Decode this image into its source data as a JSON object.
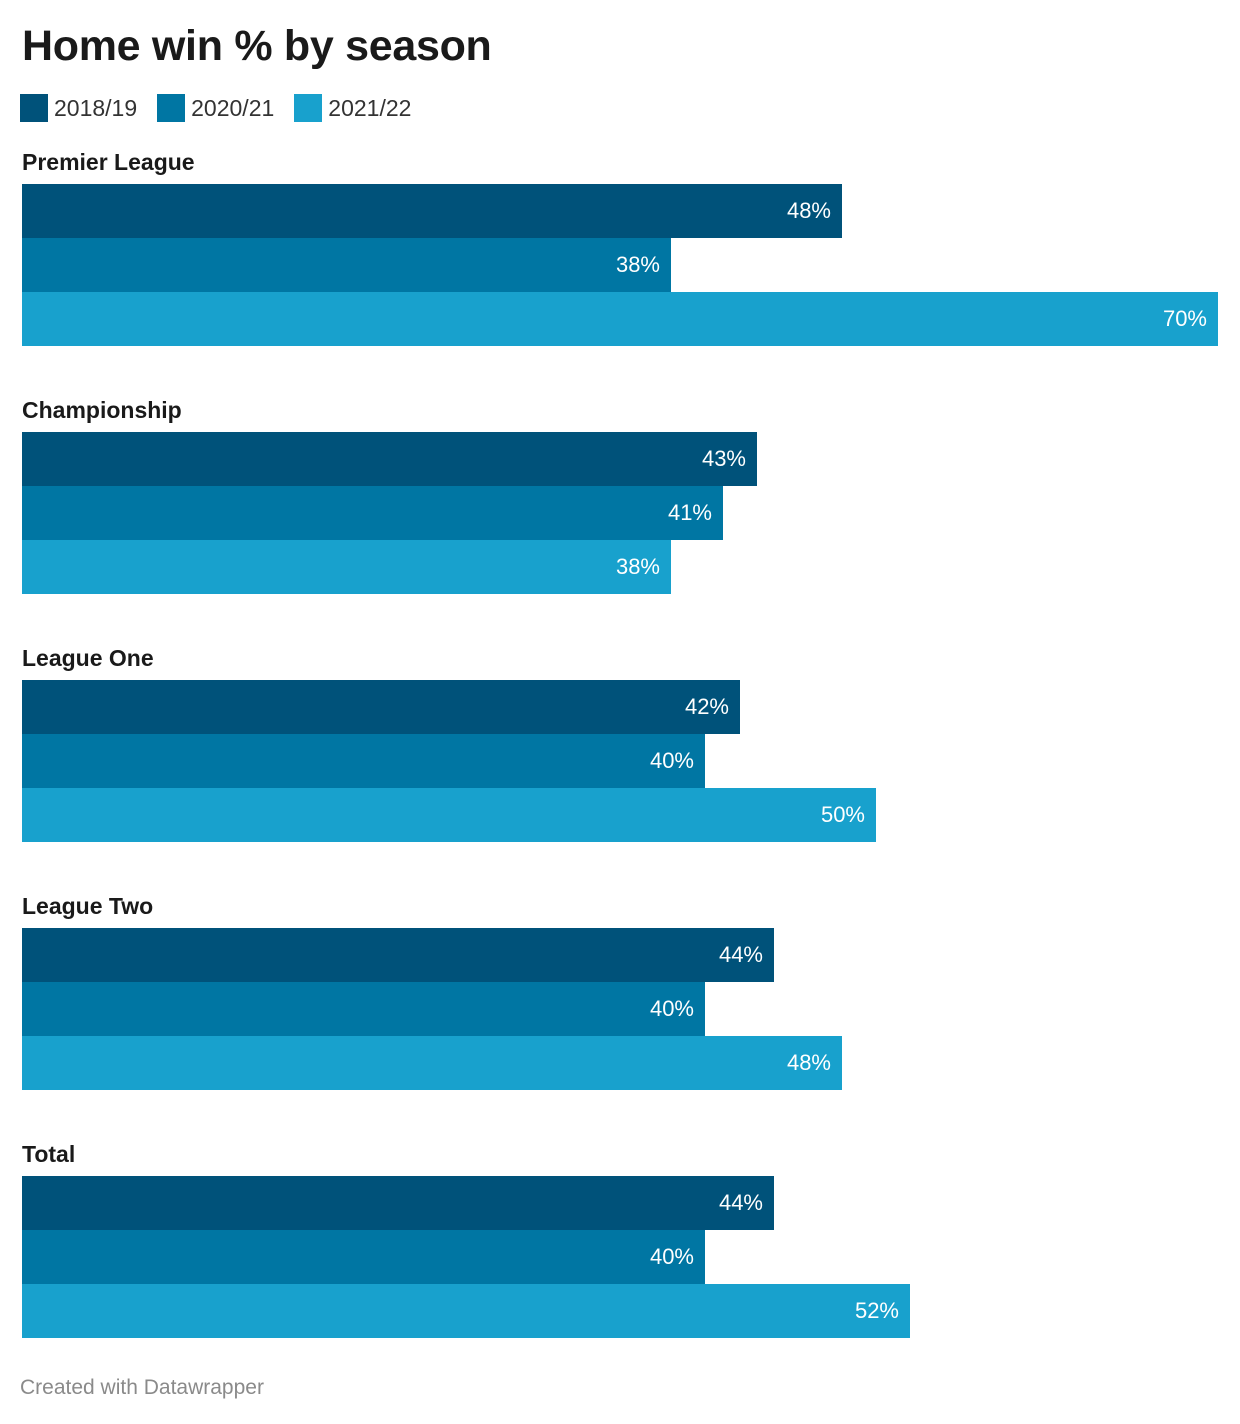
{
  "chart_data": {
    "type": "bar",
    "orientation": "horizontal",
    "title": "Home win % by season",
    "categories": [
      "Premier League",
      "Championship",
      "League One",
      "League Two",
      "Total"
    ],
    "series": [
      {
        "name": "2018/19",
        "color": "#00527a",
        "values": [
          48,
          43,
          42,
          44,
          44
        ],
        "labels": [
          "48%",
          "43%",
          "42%",
          "44%",
          "44%"
        ]
      },
      {
        "name": "2020/21",
        "color": "#0076a3",
        "values": [
          38,
          41,
          40,
          40,
          40
        ],
        "labels": [
          "38%",
          "41%",
          "40%",
          "40%",
          "40%"
        ]
      },
      {
        "name": "2021/22",
        "color": "#18a1cd",
        "values": [
          70,
          38,
          50,
          48,
          52
        ],
        "labels": [
          "70%",
          "38%",
          "50%",
          "48%",
          "52%"
        ]
      }
    ],
    "xlim": [
      0,
      70
    ],
    "legend_position": "top-left",
    "grid": false
  },
  "footer": {
    "credit": "Created with Datawrapper"
  }
}
